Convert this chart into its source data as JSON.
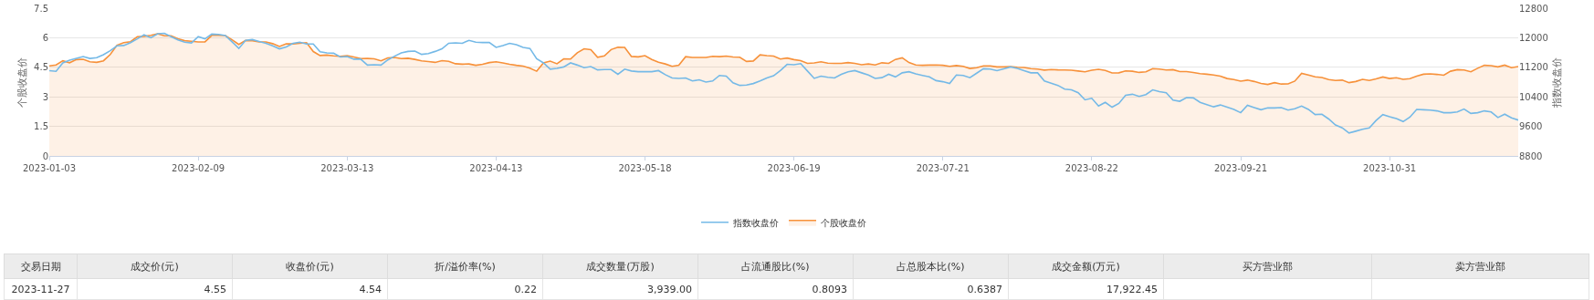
{
  "chart_data": {
    "type": "line",
    "categories": [
      "2023-01-03",
      null,
      null,
      null,
      null,
      null,
      null,
      null,
      null,
      null,
      null,
      null,
      null,
      null,
      null,
      null,
      null,
      null,
      null,
      null,
      null,
      null,
      "2023-02-09",
      null,
      null,
      null,
      null,
      null,
      null,
      null,
      null,
      null,
      null,
      null,
      null,
      null,
      null,
      null,
      null,
      null,
      null,
      null,
      null,
      null,
      "2023-03-13",
      null,
      null,
      null,
      null,
      null,
      null,
      null,
      null,
      null,
      null,
      null,
      null,
      null,
      null,
      null,
      null,
      null,
      null,
      null,
      null,
      null,
      "2023-04-13",
      null,
      null,
      null,
      null,
      null,
      null,
      null,
      null,
      null,
      null,
      null,
      null,
      null,
      null,
      null,
      null,
      null,
      null,
      null,
      null,
      null,
      "2023-05-18",
      null,
      null,
      null,
      null,
      null,
      null,
      null,
      null,
      null,
      null,
      null,
      null,
      null,
      null,
      null,
      null,
      null,
      null,
      null,
      null,
      null,
      "2023-06-19",
      null,
      null,
      null,
      null,
      null,
      null,
      null,
      null,
      null,
      null,
      null,
      null,
      null,
      null,
      null,
      null,
      null,
      null,
      null,
      null,
      null,
      "2023-07-21",
      null,
      null,
      null,
      null,
      null,
      null,
      null,
      null,
      null,
      null,
      null,
      null,
      null,
      null,
      null,
      null,
      null,
      null,
      null,
      null,
      null,
      "2023-08-22",
      null,
      null,
      null,
      null,
      null,
      null,
      null,
      null,
      null,
      null,
      null,
      null,
      null,
      null,
      null,
      null,
      null,
      null,
      null,
      null,
      null,
      "2023-09-21",
      null,
      null,
      null,
      null,
      null,
      null,
      null,
      null,
      null,
      null,
      null,
      null,
      null,
      null,
      null,
      null,
      null,
      null,
      null,
      null,
      null,
      "2023-10-31",
      null,
      null,
      null,
      null,
      null,
      null,
      null,
      null,
      null,
      null,
      null,
      null,
      null,
      null,
      null,
      null,
      null,
      null,
      null
    ],
    "series": [
      {
        "name": "指数收盘价",
        "axis": "y2",
        "color": "#74b9e7",
        "values": [
          11110,
          11090,
          11320,
          11390,
          11440,
          11490,
          11440,
          11460,
          11540,
          11650,
          11780,
          11790,
          11870,
          11970,
          12080,
          12000,
          12110,
          12120,
          12030,
          11940,
          11880,
          11860,
          12030,
          11970,
          12100,
          12090,
          12060,
          11890,
          11710,
          11930,
          11950,
          11900,
          11850,
          11780,
          11700,
          11750,
          11850,
          11880,
          11830,
          11830,
          11620,
          11590,
          11580,
          11480,
          11490,
          11420,
          11420,
          11260,
          11270,
          11260,
          11400,
          11500,
          11590,
          11630,
          11640,
          11550,
          11570,
          11630,
          11700,
          11850,
          11860,
          11850,
          11930,
          11880,
          11870,
          11870,
          11740,
          11790,
          11850,
          11810,
          11740,
          11710,
          11430,
          11320,
          11150,
          11170,
          11210,
          11320,
          11260,
          11190,
          11220,
          11130,
          11140,
          11140,
          11010,
          11150,
          11100,
          11080,
          11080,
          11080,
          11110,
          11000,
          10910,
          10900,
          10910,
          10830,
          10860,
          10800,
          10830,
          10980,
          10960,
          10780,
          10710,
          10720,
          10760,
          10830,
          10910,
          10970,
          11110,
          11280,
          11270,
          11300,
          11100,
          10900,
          10960,
          10930,
          10910,
          11010,
          11080,
          11110,
          11050,
          10990,
          10900,
          10920,
          11010,
          10940,
          11050,
          11080,
          11020,
          10980,
          10940,
          10840,
          10810,
          10760,
          10990,
          10980,
          10920,
          11040,
          11160,
          11150,
          11110,
          11160,
          11210,
          11170,
          11110,
          11050,
          11050,
          10830,
          10770,
          10710,
          10610,
          10590,
          10510,
          10320,
          10360,
          10150,
          10250,
          10120,
          10220,
          10440,
          10470,
          10410,
          10460,
          10590,
          10540,
          10510,
          10310,
          10280,
          10380,
          10370,
          10250,
          10190,
          10130,
          10180,
          10120,
          10060,
          9970,
          10170,
          10110,
          10050,
          10100,
          10100,
          10110,
          10040,
          10080,
          10150,
          10060,
          9920,
          9930,
          9800,
          9640,
          9560,
          9420,
          9470,
          9520,
          9560,
          9760,
          9920,
          9860,
          9810,
          9730,
          9850,
          10060,
          10050,
          10040,
          10020,
          9970,
          9970,
          9990,
          10070,
          9950,
          9970,
          10020,
          9990,
          9840,
          9930,
          9830,
          9770
        ]
      },
      {
        "name": "个股收盘价",
        "type": "area",
        "color": "#f7913a",
        "values": [
          4.57,
          4.62,
          4.83,
          4.73,
          4.89,
          4.91,
          4.78,
          4.75,
          4.83,
          5.15,
          5.62,
          5.75,
          5.8,
          6.05,
          6.07,
          6.12,
          6.2,
          6.1,
          6.1,
          5.95,
          5.85,
          5.82,
          5.79,
          5.79,
          6.12,
          6.13,
          6.11,
          5.9,
          5.66,
          5.86,
          5.85,
          5.79,
          5.79,
          5.7,
          5.56,
          5.69,
          5.69,
          5.72,
          5.75,
          5.3,
          5.1,
          5.12,
          5.08,
          5.06,
          5.09,
          5.02,
          4.94,
          4.95,
          4.93,
          4.83,
          4.98,
          5.0,
          4.94,
          4.96,
          4.9,
          4.83,
          4.79,
          4.75,
          4.84,
          4.8,
          4.68,
          4.66,
          4.67,
          4.6,
          4.65,
          4.74,
          4.78,
          4.72,
          4.65,
          4.6,
          4.56,
          4.46,
          4.3,
          4.72,
          4.81,
          4.68,
          4.93,
          4.92,
          5.24,
          5.44,
          5.39,
          5.01,
          5.08,
          5.4,
          5.52,
          5.51,
          5.05,
          5.03,
          5.09,
          4.9,
          4.76,
          4.67,
          4.55,
          4.61,
          5.04,
          5.0,
          5.0,
          5.0,
          5.06,
          5.04,
          5.07,
          5.02,
          5.01,
          4.8,
          4.82,
          5.13,
          5.09,
          5.07,
          4.92,
          4.97,
          4.89,
          4.84,
          4.7,
          4.72,
          4.78,
          4.71,
          4.7,
          4.7,
          4.74,
          4.7,
          4.63,
          4.67,
          4.62,
          4.73,
          4.7,
          4.9,
          4.98,
          4.74,
          4.62,
          4.6,
          4.61,
          4.62,
          4.6,
          4.55,
          4.59,
          4.55,
          4.44,
          4.48,
          4.57,
          4.57,
          4.52,
          4.52,
          4.54,
          4.5,
          4.49,
          4.43,
          4.41,
          4.36,
          4.39,
          4.37,
          4.36,
          4.35,
          4.31,
          4.27,
          4.35,
          4.4,
          4.34,
          4.21,
          4.22,
          4.32,
          4.3,
          4.24,
          4.27,
          4.43,
          4.41,
          4.36,
          4.38,
          4.28,
          4.28,
          4.24,
          4.18,
          4.15,
          4.11,
          4.05,
          3.93,
          3.88,
          3.8,
          3.85,
          3.78,
          3.68,
          3.63,
          3.72,
          3.65,
          3.66,
          3.8,
          4.19,
          4.11,
          4.02,
          3.98,
          3.88,
          3.83,
          3.85,
          3.72,
          3.78,
          3.89,
          3.83,
          3.91,
          4.01,
          3.93,
          3.97,
          3.89,
          3.92,
          4.05,
          4.15,
          4.17,
          4.14,
          4.1,
          4.3,
          4.38,
          4.36,
          4.27,
          4.45,
          4.6,
          4.58,
          4.52,
          4.61,
          4.48,
          4.54
        ]
      }
    ],
    "ylabel": "个股收盘价",
    "y2label": "指数收盘价",
    "ylim": [
      0,
      7.5
    ],
    "yticks": [
      0,
      1.5,
      3,
      4.5,
      6,
      7.5
    ],
    "y2lim": [
      8800,
      12800
    ],
    "y2ticks": [
      8800,
      9600,
      10400,
      11200,
      12000,
      12800
    ],
    "grid": "y",
    "legend": "bottom",
    "annotations": [
      "交易日期",
      "成交价(元)",
      "收盘价(元)",
      "折/溢价率(%)",
      "成交数量(万股)",
      "占流通股比(%)",
      "占总股本比(%)",
      "成交金额(万元)",
      "买方营业部",
      "卖方营业部",
      "2023-11-27",
      "4.55",
      "4.54",
      "0.22",
      "3,939.00",
      "0.8093",
      "0.6387",
      "17,922.45"
    ]
  }
}
